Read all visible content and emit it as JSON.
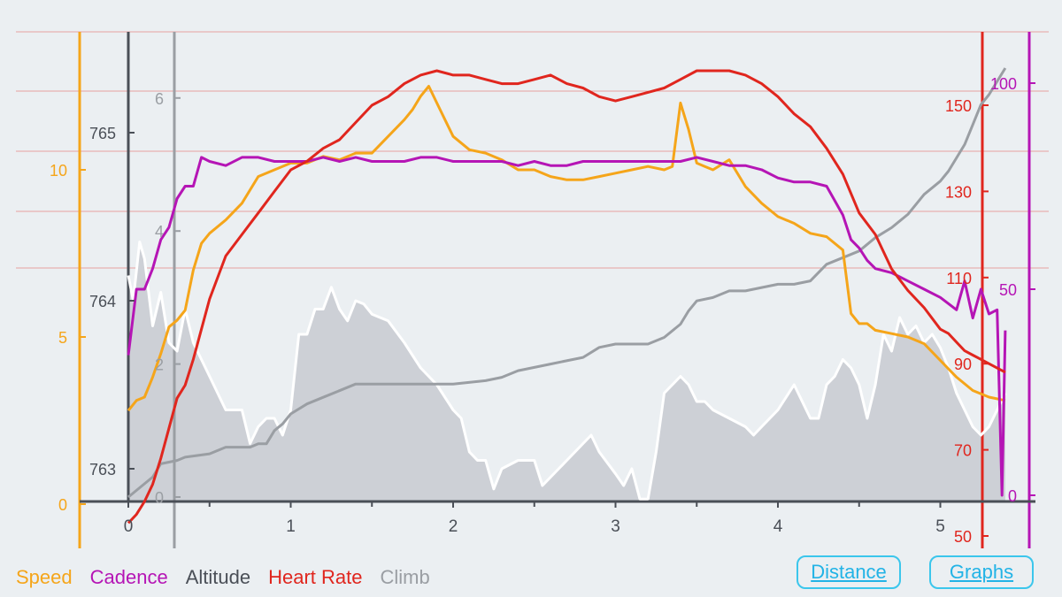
{
  "colors": {
    "speed": "#f5a51a",
    "cadence": "#b515b5",
    "altitude": "#4a4f57",
    "heart_rate": "#e0261e",
    "climb": "#9a9ea3",
    "altitude_fill": "#cdd0d6",
    "grid_red": "#e7a0a0",
    "button": "#3bc6ec"
  },
  "legend": {
    "items": [
      {
        "key": "speed",
        "label": "Speed"
      },
      {
        "key": "cadence",
        "label": "Cadence"
      },
      {
        "key": "altitude",
        "label": "Altitude"
      },
      {
        "key": "heart_rate",
        "label": "Heart Rate"
      },
      {
        "key": "climb",
        "label": "Climb"
      }
    ]
  },
  "buttons": {
    "distance": "Distance",
    "graphs": "Graphs"
  },
  "chart_data": {
    "type": "line",
    "x_ticks": [
      "0",
      "1",
      "2",
      "3",
      "4",
      "5"
    ],
    "xlim": [
      0,
      5.5
    ],
    "axes": {
      "speed": {
        "ticks": [
          "0",
          "5",
          "10"
        ],
        "range": [
          0,
          12.5
        ]
      },
      "altitude": {
        "ticks": [
          "763",
          "764",
          "765"
        ],
        "range": [
          762.82,
          765.34
        ]
      },
      "climb": {
        "ticks": [
          "0",
          "2",
          "4",
          "6"
        ],
        "range": [
          0,
          6.6
        ]
      },
      "heart_rate": {
        "ticks": [
          "50",
          "70",
          "90",
          "110",
          "130",
          "150"
        ],
        "range": [
          50,
          160
        ]
      },
      "cadence": {
        "ticks": [
          "0",
          "50",
          "100"
        ],
        "range": [
          0,
          100
        ]
      }
    },
    "series": [
      {
        "key": "altitude",
        "name": "Altitude",
        "x": [
          0,
          0.03,
          0.07,
          0.1,
          0.15,
          0.2,
          0.25,
          0.3,
          0.35,
          0.4,
          0.45,
          0.5,
          0.6,
          0.7,
          0.75,
          0.8,
          0.85,
          0.9,
          0.95,
          1.0,
          1.05,
          1.1,
          1.15,
          1.2,
          1.25,
          1.3,
          1.35,
          1.4,
          1.45,
          1.5,
          1.6,
          1.7,
          1.8,
          1.9,
          2.0,
          2.05,
          2.1,
          2.15,
          2.2,
          2.25,
          2.3,
          2.4,
          2.5,
          2.55,
          2.6,
          2.7,
          2.8,
          2.85,
          2.9,
          3.0,
          3.05,
          3.1,
          3.15,
          3.2,
          3.25,
          3.3,
          3.35,
          3.4,
          3.45,
          3.5,
          3.55,
          3.6,
          3.7,
          3.8,
          3.85,
          3.9,
          4.0,
          4.1,
          4.2,
          4.25,
          4.3,
          4.35,
          4.4,
          4.45,
          4.5,
          4.55,
          4.6,
          4.65,
          4.7,
          4.75,
          4.8,
          4.85,
          4.9,
          4.95,
          5.0,
          5.05,
          5.1,
          5.15,
          5.2,
          5.25,
          5.3,
          5.35,
          5.4
        ],
        "values": [
          764.15,
          764.0,
          764.35,
          764.25,
          763.85,
          764.05,
          763.75,
          763.7,
          763.95,
          763.75,
          763.65,
          763.55,
          763.35,
          763.35,
          763.15,
          763.25,
          763.3,
          763.3,
          763.2,
          763.35,
          763.8,
          763.8,
          763.95,
          763.95,
          764.08,
          763.95,
          763.88,
          764.0,
          763.98,
          763.92,
          763.88,
          763.75,
          763.6,
          763.5,
          763.35,
          763.3,
          763.1,
          763.05,
          763.05,
          762.88,
          763.0,
          763.05,
          763.05,
          762.9,
          762.95,
          763.05,
          763.15,
          763.2,
          763.1,
          762.97,
          762.9,
          763.0,
          762.82,
          762.82,
          763.1,
          763.45,
          763.5,
          763.55,
          763.5,
          763.4,
          763.4,
          763.35,
          763.3,
          763.25,
          763.2,
          763.25,
          763.35,
          763.5,
          763.3,
          763.3,
          763.5,
          763.55,
          763.65,
          763.6,
          763.5,
          763.3,
          763.5,
          763.8,
          763.7,
          763.9,
          763.8,
          763.85,
          763.75,
          763.8,
          763.72,
          763.6,
          763.45,
          763.35,
          763.25,
          763.2,
          763.25,
          763.35,
          763.45
        ]
      },
      {
        "key": "climb",
        "name": "Climb",
        "x": [
          0,
          0.15,
          0.2,
          0.3,
          0.35,
          0.5,
          0.6,
          0.75,
          0.8,
          0.85,
          0.9,
          0.95,
          1.0,
          1.1,
          1.2,
          1.3,
          1.4,
          1.5,
          1.7,
          1.9,
          2.0,
          2.2,
          2.3,
          2.4,
          2.6,
          2.8,
          2.9,
          3.0,
          3.2,
          3.3,
          3.4,
          3.45,
          3.5,
          3.6,
          3.7,
          3.8,
          3.9,
          4.0,
          4.1,
          4.2,
          4.3,
          4.4,
          4.5,
          4.6,
          4.7,
          4.8,
          4.9,
          5.0,
          5.05,
          5.1,
          5.15,
          5.2,
          5.25,
          5.3,
          5.35,
          5.4
        ],
        "values": [
          0,
          0.3,
          0.5,
          0.55,
          0.6,
          0.65,
          0.75,
          0.75,
          0.8,
          0.8,
          1.0,
          1.1,
          1.25,
          1.4,
          1.5,
          1.6,
          1.7,
          1.7,
          1.7,
          1.7,
          1.7,
          1.75,
          1.8,
          1.9,
          2.0,
          2.1,
          2.25,
          2.3,
          2.3,
          2.4,
          2.6,
          2.8,
          2.95,
          3.0,
          3.1,
          3.1,
          3.15,
          3.2,
          3.2,
          3.25,
          3.5,
          3.6,
          3.7,
          3.9,
          4.05,
          4.25,
          4.55,
          4.75,
          4.9,
          5.1,
          5.3,
          5.6,
          5.9,
          6.05,
          6.25,
          6.45
        ]
      },
      {
        "key": "speed",
        "name": "Speed",
        "x": [
          0,
          0.05,
          0.1,
          0.15,
          0.2,
          0.25,
          0.3,
          0.35,
          0.4,
          0.45,
          0.5,
          0.6,
          0.7,
          0.8,
          0.9,
          1.0,
          1.1,
          1.2,
          1.3,
          1.4,
          1.5,
          1.6,
          1.7,
          1.75,
          1.8,
          1.85,
          1.9,
          1.95,
          2.0,
          2.1,
          2.2,
          2.3,
          2.4,
          2.5,
          2.6,
          2.7,
          2.8,
          2.9,
          3.0,
          3.1,
          3.2,
          3.3,
          3.35,
          3.4,
          3.45,
          3.5,
          3.55,
          3.6,
          3.7,
          3.8,
          3.9,
          4.0,
          4.1,
          4.2,
          4.3,
          4.4,
          4.45,
          4.5,
          4.55,
          4.6,
          4.7,
          4.8,
          4.9,
          5.0,
          5.1,
          5.2,
          5.3,
          5.4
        ],
        "values": [
          2.8,
          3.1,
          3.2,
          3.8,
          4.5,
          5.3,
          5.5,
          5.8,
          7.0,
          7.8,
          8.1,
          8.5,
          9.0,
          9.8,
          10.0,
          10.2,
          10.2,
          10.4,
          10.3,
          10.5,
          10.5,
          11.0,
          11.5,
          11.8,
          12.2,
          12.5,
          12.0,
          11.5,
          11.0,
          10.6,
          10.5,
          10.3,
          10.0,
          10.0,
          9.8,
          9.7,
          9.7,
          9.8,
          9.9,
          10.0,
          10.1,
          10.0,
          10.1,
          12.0,
          11.2,
          10.2,
          10.1,
          10.0,
          10.3,
          9.5,
          9.0,
          8.6,
          8.4,
          8.1,
          8.0,
          7.6,
          5.7,
          5.4,
          5.4,
          5.2,
          5.1,
          5.0,
          4.8,
          4.3,
          3.8,
          3.4,
          3.2,
          3.1
        ]
      },
      {
        "key": "cadence",
        "name": "Cadence",
        "x": [
          0,
          0.05,
          0.1,
          0.15,
          0.2,
          0.25,
          0.3,
          0.35,
          0.4,
          0.45,
          0.5,
          0.6,
          0.7,
          0.8,
          0.9,
          1.0,
          1.1,
          1.2,
          1.3,
          1.4,
          1.5,
          1.6,
          1.7,
          1.8,
          1.9,
          2.0,
          2.1,
          2.2,
          2.3,
          2.4,
          2.5,
          2.6,
          2.7,
          2.8,
          2.9,
          3.0,
          3.1,
          3.2,
          3.3,
          3.4,
          3.5,
          3.6,
          3.7,
          3.8,
          3.9,
          4.0,
          4.1,
          4.2,
          4.3,
          4.4,
          4.45,
          4.5,
          4.55,
          4.6,
          4.7,
          4.8,
          4.9,
          5.0,
          5.1,
          5.15,
          5.2,
          5.25,
          5.3,
          5.35,
          5.38,
          5.4
        ],
        "values": [
          34,
          50,
          50,
          55,
          62,
          65,
          72,
          75,
          75,
          82,
          81,
          80,
          82,
          82,
          81,
          81,
          81,
          82,
          81,
          82,
          81,
          81,
          81,
          82,
          82,
          81,
          81,
          81,
          81,
          80,
          81,
          80,
          80,
          81,
          81,
          81,
          81,
          81,
          81,
          81,
          82,
          81,
          80,
          80,
          79,
          77,
          76,
          76,
          75,
          68,
          62,
          60,
          57,
          55,
          54,
          52,
          50,
          48,
          45,
          52,
          43,
          50,
          44,
          45,
          0,
          40
        ]
      },
      {
        "key": "heart_rate",
        "name": "Heart Rate",
        "x": [
          0,
          0.05,
          0.1,
          0.15,
          0.2,
          0.25,
          0.3,
          0.35,
          0.4,
          0.45,
          0.5,
          0.6,
          0.7,
          0.8,
          0.9,
          1.0,
          1.1,
          1.2,
          1.3,
          1.4,
          1.5,
          1.6,
          1.7,
          1.8,
          1.9,
          2.0,
          2.1,
          2.2,
          2.3,
          2.4,
          2.5,
          2.6,
          2.7,
          2.8,
          2.9,
          3.0,
          3.1,
          3.2,
          3.3,
          3.4,
          3.5,
          3.6,
          3.7,
          3.8,
          3.9,
          4.0,
          4.1,
          4.2,
          4.3,
          4.4,
          4.5,
          4.6,
          4.7,
          4.8,
          4.9,
          5.0,
          5.05,
          5.1,
          5.15,
          5.2,
          5.25,
          5.3,
          5.35,
          5.4
        ],
        "values": [
          53,
          55,
          58,
          62,
          68,
          75,
          82,
          85,
          91,
          98,
          105,
          115,
          120,
          125,
          130,
          135,
          137,
          140,
          142,
          146,
          150,
          152,
          155,
          157,
          158,
          157,
          157,
          156,
          155,
          155,
          156,
          157,
          155,
          154,
          152,
          151,
          152,
          153,
          154,
          156,
          158,
          158,
          158,
          157,
          155,
          152,
          148,
          145,
          140,
          134,
          125,
          120,
          112,
          107,
          103,
          98,
          97,
          95,
          93,
          92,
          91,
          90,
          89,
          88
        ]
      }
    ]
  }
}
